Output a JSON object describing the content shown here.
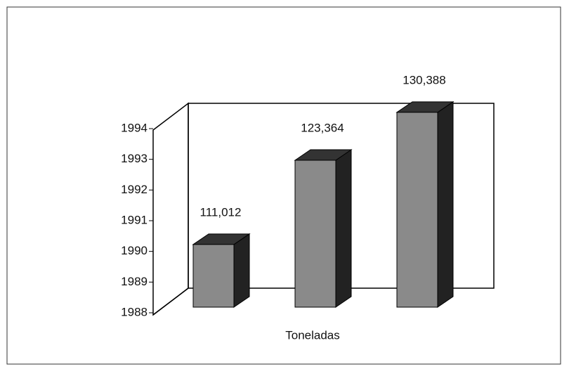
{
  "chart_data": {
    "type": "bar3d",
    "x_label": "Toneladas",
    "values": [
      111012,
      123364,
      130388
    ],
    "value_labels": [
      "111,012",
      "123,364",
      "130,388"
    ],
    "ylim": [
      101000,
      128000
    ],
    "yticks": [
      {
        "value": 101000,
        "label": "1988"
      },
      {
        "value": 105500,
        "label": "1989"
      },
      {
        "value": 110000,
        "label": "1990"
      },
      {
        "value": 114500,
        "label": "1991"
      },
      {
        "value": 119000,
        "label": "1992"
      },
      {
        "value": 123500,
        "label": "1993"
      },
      {
        "value": 128000,
        "label": "1994"
      }
    ],
    "color": "#8a8a8a"
  }
}
